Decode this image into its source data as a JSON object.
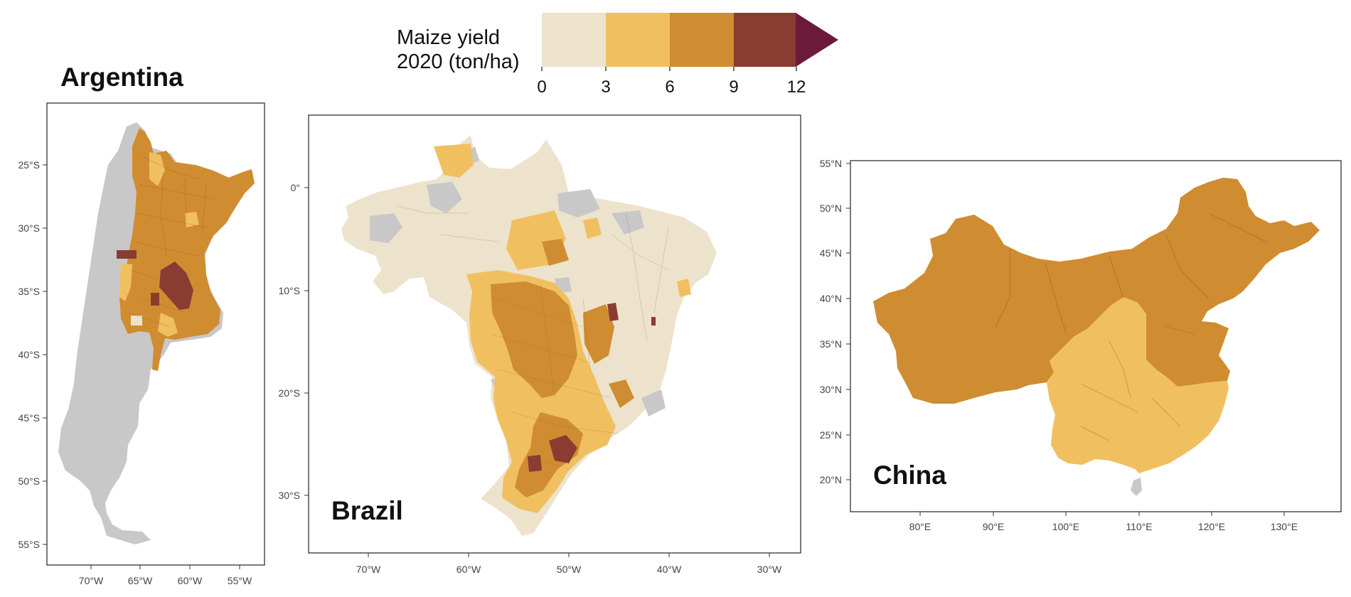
{
  "legend": {
    "title_line1": "Maize yield",
    "title_line2": "2020 (ton/ha)",
    "breaks": [
      "0",
      "3",
      "6",
      "9",
      "12"
    ],
    "classes": [
      {
        "range": [
          0,
          3
        ],
        "color": "#ede3cc"
      },
      {
        "range": [
          3,
          6
        ],
        "color": "#f0c060"
      },
      {
        "range": [
          6,
          9
        ],
        "color": "#d08c30"
      },
      {
        "range": [
          9,
          12
        ],
        "color": "#8a3c32"
      },
      {
        "range": [
          12,
          null
        ],
        "color": "#6b1a3a"
      }
    ],
    "no_data_color": "#c8c8c8"
  },
  "maps": {
    "argentina": {
      "title": "Argentina",
      "lat_labels": [
        "25°S",
        "30°S",
        "35°S",
        "40°S",
        "45°S",
        "50°S",
        "55°S"
      ],
      "lon_labels": [
        "70°W",
        "65°W",
        "60°W",
        "55°W"
      ]
    },
    "brazil": {
      "title": "Brazil",
      "lat_labels": [
        "0°",
        "10°S",
        "20°S",
        "30°S"
      ],
      "lon_labels": [
        "70°W",
        "60°W",
        "50°W",
        "40°W",
        "30°W"
      ]
    },
    "china": {
      "title": "China",
      "lat_labels": [
        "55°N",
        "50°N",
        "45°N",
        "40°N",
        "35°N",
        "30°N",
        "25°N",
        "20°N"
      ],
      "lon_labels": [
        "80°E",
        "90°E",
        "100°E",
        "110°E",
        "120°E",
        "130°E"
      ]
    }
  }
}
